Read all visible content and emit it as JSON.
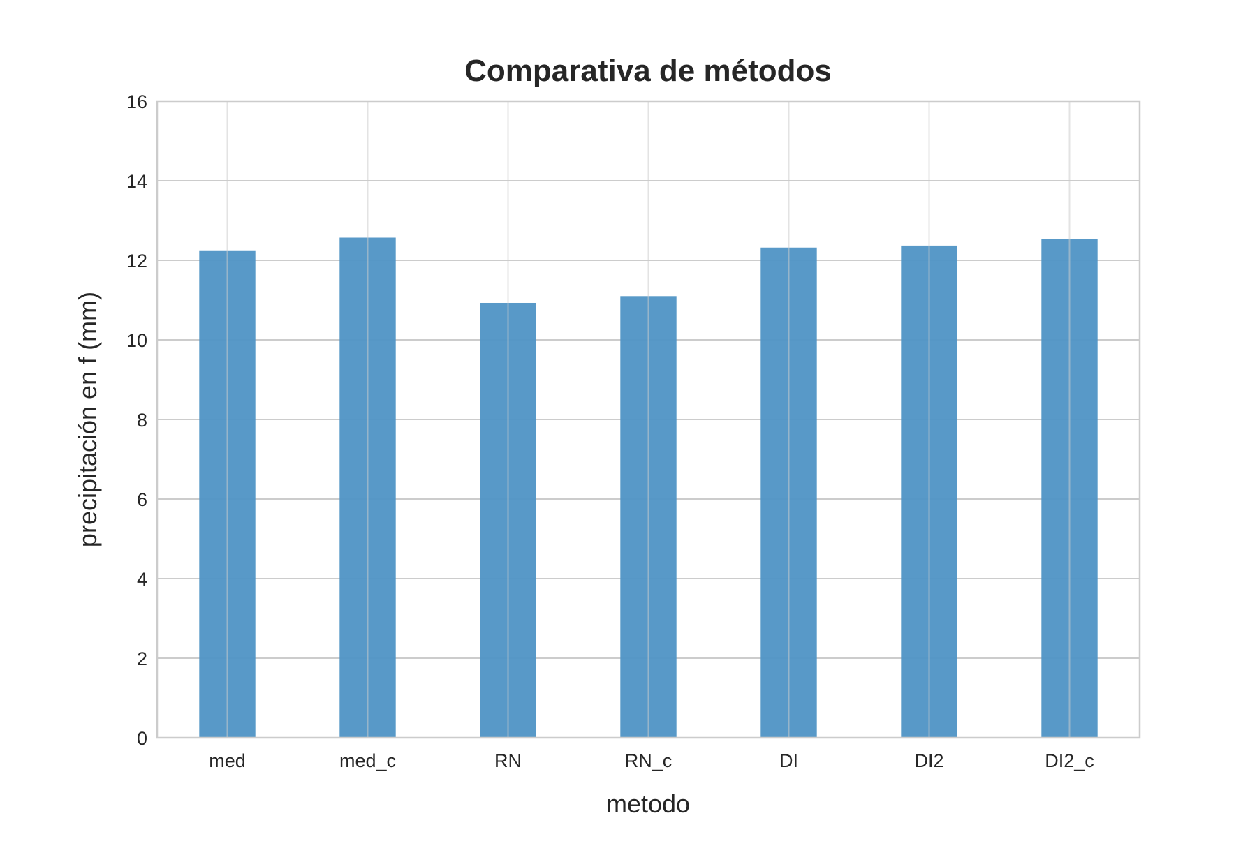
{
  "chart_data": {
    "type": "bar",
    "title": "Comparativa de métodos",
    "xlabel": "metodo",
    "ylabel": "precipitación en f (mm)",
    "categories": [
      "med",
      "med_c",
      "RN",
      "RN_c",
      "DI",
      "DI2",
      "DI2_c"
    ],
    "values": [
      12.25,
      12.57,
      10.93,
      11.1,
      12.32,
      12.37,
      12.53
    ],
    "ylim": [
      0,
      16
    ],
    "yticks": [
      "0",
      "2",
      "4",
      "6",
      "8",
      "10",
      "12",
      "14",
      "16"
    ],
    "grid": true,
    "legend": "none",
    "bar_color": "#4f93c5"
  }
}
